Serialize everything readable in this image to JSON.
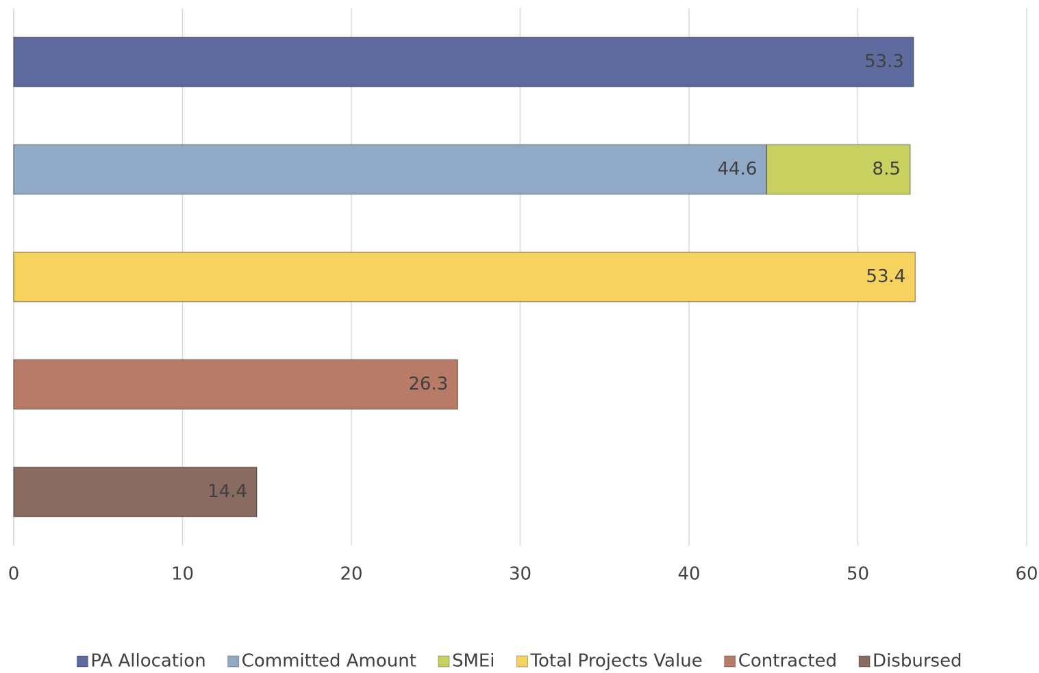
{
  "chart_data": {
    "type": "bar",
    "orientation": "horizontal",
    "stacked": true,
    "categories": [
      null,
      null,
      null,
      null,
      null
    ],
    "series": [
      {
        "name": "PA Allocation",
        "color": "#5f6b9e",
        "values": [
          53.3,
          null,
          null,
          null,
          null
        ]
      },
      {
        "name": "Committed Amount",
        "color": "#8fa9c6",
        "values": [
          null,
          44.6,
          null,
          null,
          null
        ]
      },
      {
        "name": "SMEi",
        "color": "#c8d160",
        "values": [
          null,
          8.5,
          null,
          null,
          null
        ]
      },
      {
        "name": "Total Projects Value",
        "color": "#f5d35e",
        "values": [
          null,
          null,
          53.4,
          null,
          null
        ]
      },
      {
        "name": "Contracted",
        "color": "#b87b68",
        "values": [
          null,
          null,
          null,
          26.3,
          null
        ]
      },
      {
        "name": "Disbursed",
        "color": "#8a6b62",
        "values": [
          null,
          null,
          null,
          null,
          14.4
        ]
      }
    ],
    "xlim": [
      0,
      60
    ],
    "xticks": [
      0,
      10,
      20,
      30,
      40,
      50,
      60
    ],
    "grid": true,
    "legend": "bottom"
  }
}
